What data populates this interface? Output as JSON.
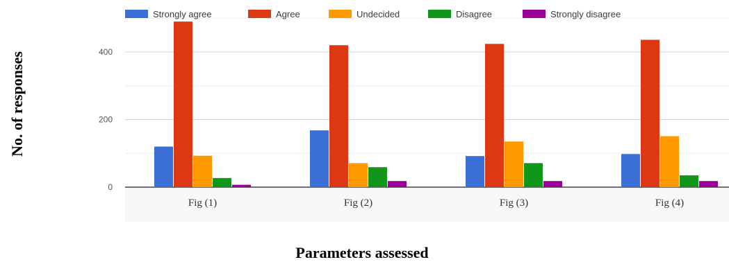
{
  "chart_data": {
    "type": "bar",
    "title": "",
    "xlabel": "Parameters assessed",
    "ylabel": "No. of responses",
    "categories": [
      "Fig (1)",
      "Fig (2)",
      "Fig (3)",
      "Fig (4)"
    ],
    "ylim": [
      0,
      500
    ],
    "yticks": [
      0,
      200,
      400
    ],
    "grid": true,
    "legend_position": "top",
    "series": [
      {
        "name": "Strongly agree",
        "color": "#3b6fd6",
        "values": [
          120,
          168,
          92,
          98
        ]
      },
      {
        "name": "Agree",
        "color": "#dc3912",
        "values": [
          490,
          420,
          424,
          436
        ]
      },
      {
        "name": "Undecided",
        "color": "#ff9900",
        "values": [
          93,
          71,
          135,
          151
        ]
      },
      {
        "name": "Disagree",
        "color": "#109618",
        "values": [
          27,
          59,
          71,
          35
        ]
      },
      {
        "name": "Strongly disagree",
        "color": "#990099",
        "values": [
          7,
          18,
          18,
          18
        ]
      }
    ]
  }
}
